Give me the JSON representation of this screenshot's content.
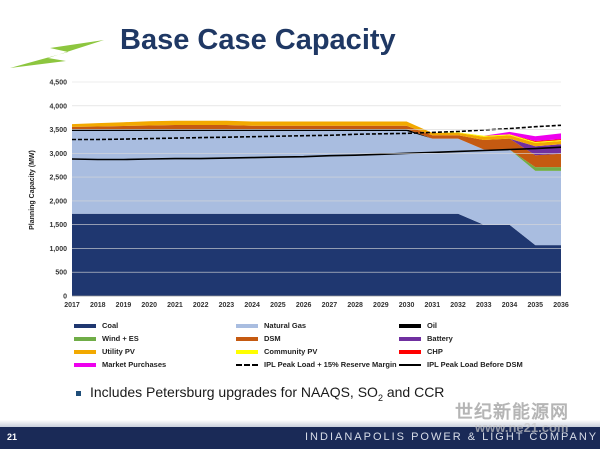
{
  "slide": {
    "title": "Base Case Capacity",
    "bullet_main": "Includes Petersburg upgrades for NAAQS, SO",
    "bullet_sub": "2",
    "bullet_end": " and CCR",
    "page_number": "21",
    "company": "INDIANAPOLIS POWER & LIGHT COMPANY",
    "watermark": "世纪新能源网",
    "watermark_url": "www.ne21.com",
    "colors": {
      "title": "#1f3864",
      "logo": "#8dc63f",
      "footer": "#1a2a57"
    }
  },
  "chart_data": {
    "type": "area",
    "title": "",
    "xlabel": "",
    "ylabel": "Planning Capacity (MW)",
    "ylim": [
      0,
      4500
    ],
    "yticks": [
      0,
      500,
      1000,
      1500,
      2000,
      2500,
      3000,
      3500,
      4000,
      4500
    ],
    "ytick_labels": [
      "0",
      "500",
      "1,000",
      "1,500",
      "2,000",
      "2,500",
      "3,000",
      "3,500",
      "4,000",
      "4,500"
    ],
    "x": [
      "2017",
      "2018",
      "2019",
      "2020",
      "2021",
      "2022",
      "2023",
      "2024",
      "2025",
      "2026",
      "2027",
      "2028",
      "2029",
      "2030",
      "2031",
      "2032",
      "2033",
      "2034",
      "2035",
      "2036"
    ],
    "series": [
      {
        "name": "Coal",
        "color": "#1f3770",
        "values": [
          1730,
          1730,
          1730,
          1730,
          1730,
          1730,
          1730,
          1730,
          1730,
          1730,
          1730,
          1730,
          1730,
          1730,
          1730,
          1730,
          1500,
          1500,
          1070,
          1070
        ]
      },
      {
        "name": "Natural Gas",
        "color": "#a9bde0",
        "values": [
          1740,
          1740,
          1740,
          1740,
          1740,
          1740,
          1740,
          1740,
          1740,
          1740,
          1740,
          1740,
          1740,
          1740,
          1580,
          1580,
          1580,
          1580,
          1560,
          1560
        ]
      },
      {
        "name": "Oil",
        "color": "#000000",
        "values": [
          40,
          40,
          40,
          40,
          40,
          40,
          40,
          40,
          40,
          40,
          40,
          40,
          40,
          40,
          0,
          0,
          0,
          0,
          0,
          0
        ]
      },
      {
        "name": "Wind + ES",
        "color": "#70ad47",
        "values": [
          0,
          0,
          0,
          0,
          0,
          0,
          0,
          0,
          0,
          0,
          0,
          0,
          0,
          0,
          0,
          0,
          0,
          0,
          80,
          80
        ]
      },
      {
        "name": "DSM",
        "color": "#c55a11",
        "values": [
          45,
          55,
          65,
          75,
          85,
          85,
          85,
          70,
          70,
          70,
          70,
          70,
          70,
          70,
          70,
          70,
          200,
          230,
          250,
          280
        ]
      },
      {
        "name": "Battery",
        "color": "#7030a0",
        "values": [
          0,
          0,
          0,
          0,
          0,
          0,
          0,
          0,
          0,
          0,
          0,
          0,
          0,
          0,
          0,
          0,
          0,
          0,
          190,
          200
        ]
      },
      {
        "name": "Utility PV",
        "color": "#f2a900",
        "values": [
          60,
          70,
          80,
          90,
          90,
          90,
          90,
          90,
          90,
          90,
          90,
          90,
          90,
          90,
          50,
          50,
          70,
          70,
          70,
          70
        ]
      },
      {
        "name": "Community PV",
        "color": "#ffff00",
        "values": [
          0,
          0,
          0,
          0,
          0,
          0,
          0,
          0,
          0,
          0,
          0,
          0,
          0,
          0,
          0,
          10,
          20,
          20,
          20,
          20
        ]
      },
      {
        "name": "CHP",
        "color": "#ff0000",
        "values": [
          0,
          0,
          0,
          0,
          0,
          0,
          0,
          0,
          0,
          0,
          0,
          0,
          0,
          0,
          0,
          0,
          0,
          0,
          20,
          20
        ]
      },
      {
        "name": "Market Purchases",
        "color": "#ee00ee",
        "values": [
          0,
          0,
          0,
          0,
          0,
          0,
          0,
          0,
          0,
          0,
          0,
          0,
          0,
          0,
          0,
          0,
          0,
          50,
          100,
          120
        ]
      }
    ],
    "lines": [
      {
        "name": "IPL Peak Load + 15% Reserve Margin",
        "style": "dashed",
        "color": "#000000",
        "values": [
          3290,
          3290,
          3300,
          3310,
          3320,
          3330,
          3340,
          3350,
          3360,
          3370,
          3380,
          3400,
          3410,
          3420,
          3440,
          3460,
          3490,
          3520,
          3560,
          3590
        ]
      },
      {
        "name": "IPL Peak Load Before DSM",
        "style": "solid",
        "color": "#000000",
        "values": [
          2880,
          2870,
          2870,
          2880,
          2890,
          2890,
          2900,
          2910,
          2920,
          2930,
          2950,
          2960,
          2980,
          3000,
          3020,
          3040,
          3060,
          3080,
          3100,
          3130
        ]
      }
    ],
    "legend_order": [
      "Coal",
      "Natural Gas",
      "Oil",
      "Wind + ES",
      "DSM",
      "Battery",
      "Utility PV",
      "Community PV",
      "CHP",
      "Market Purchases",
      "IPL Peak Load + 15% Reserve Margin",
      "IPL Peak Load Before DSM"
    ],
    "legend_position": "bottom"
  }
}
